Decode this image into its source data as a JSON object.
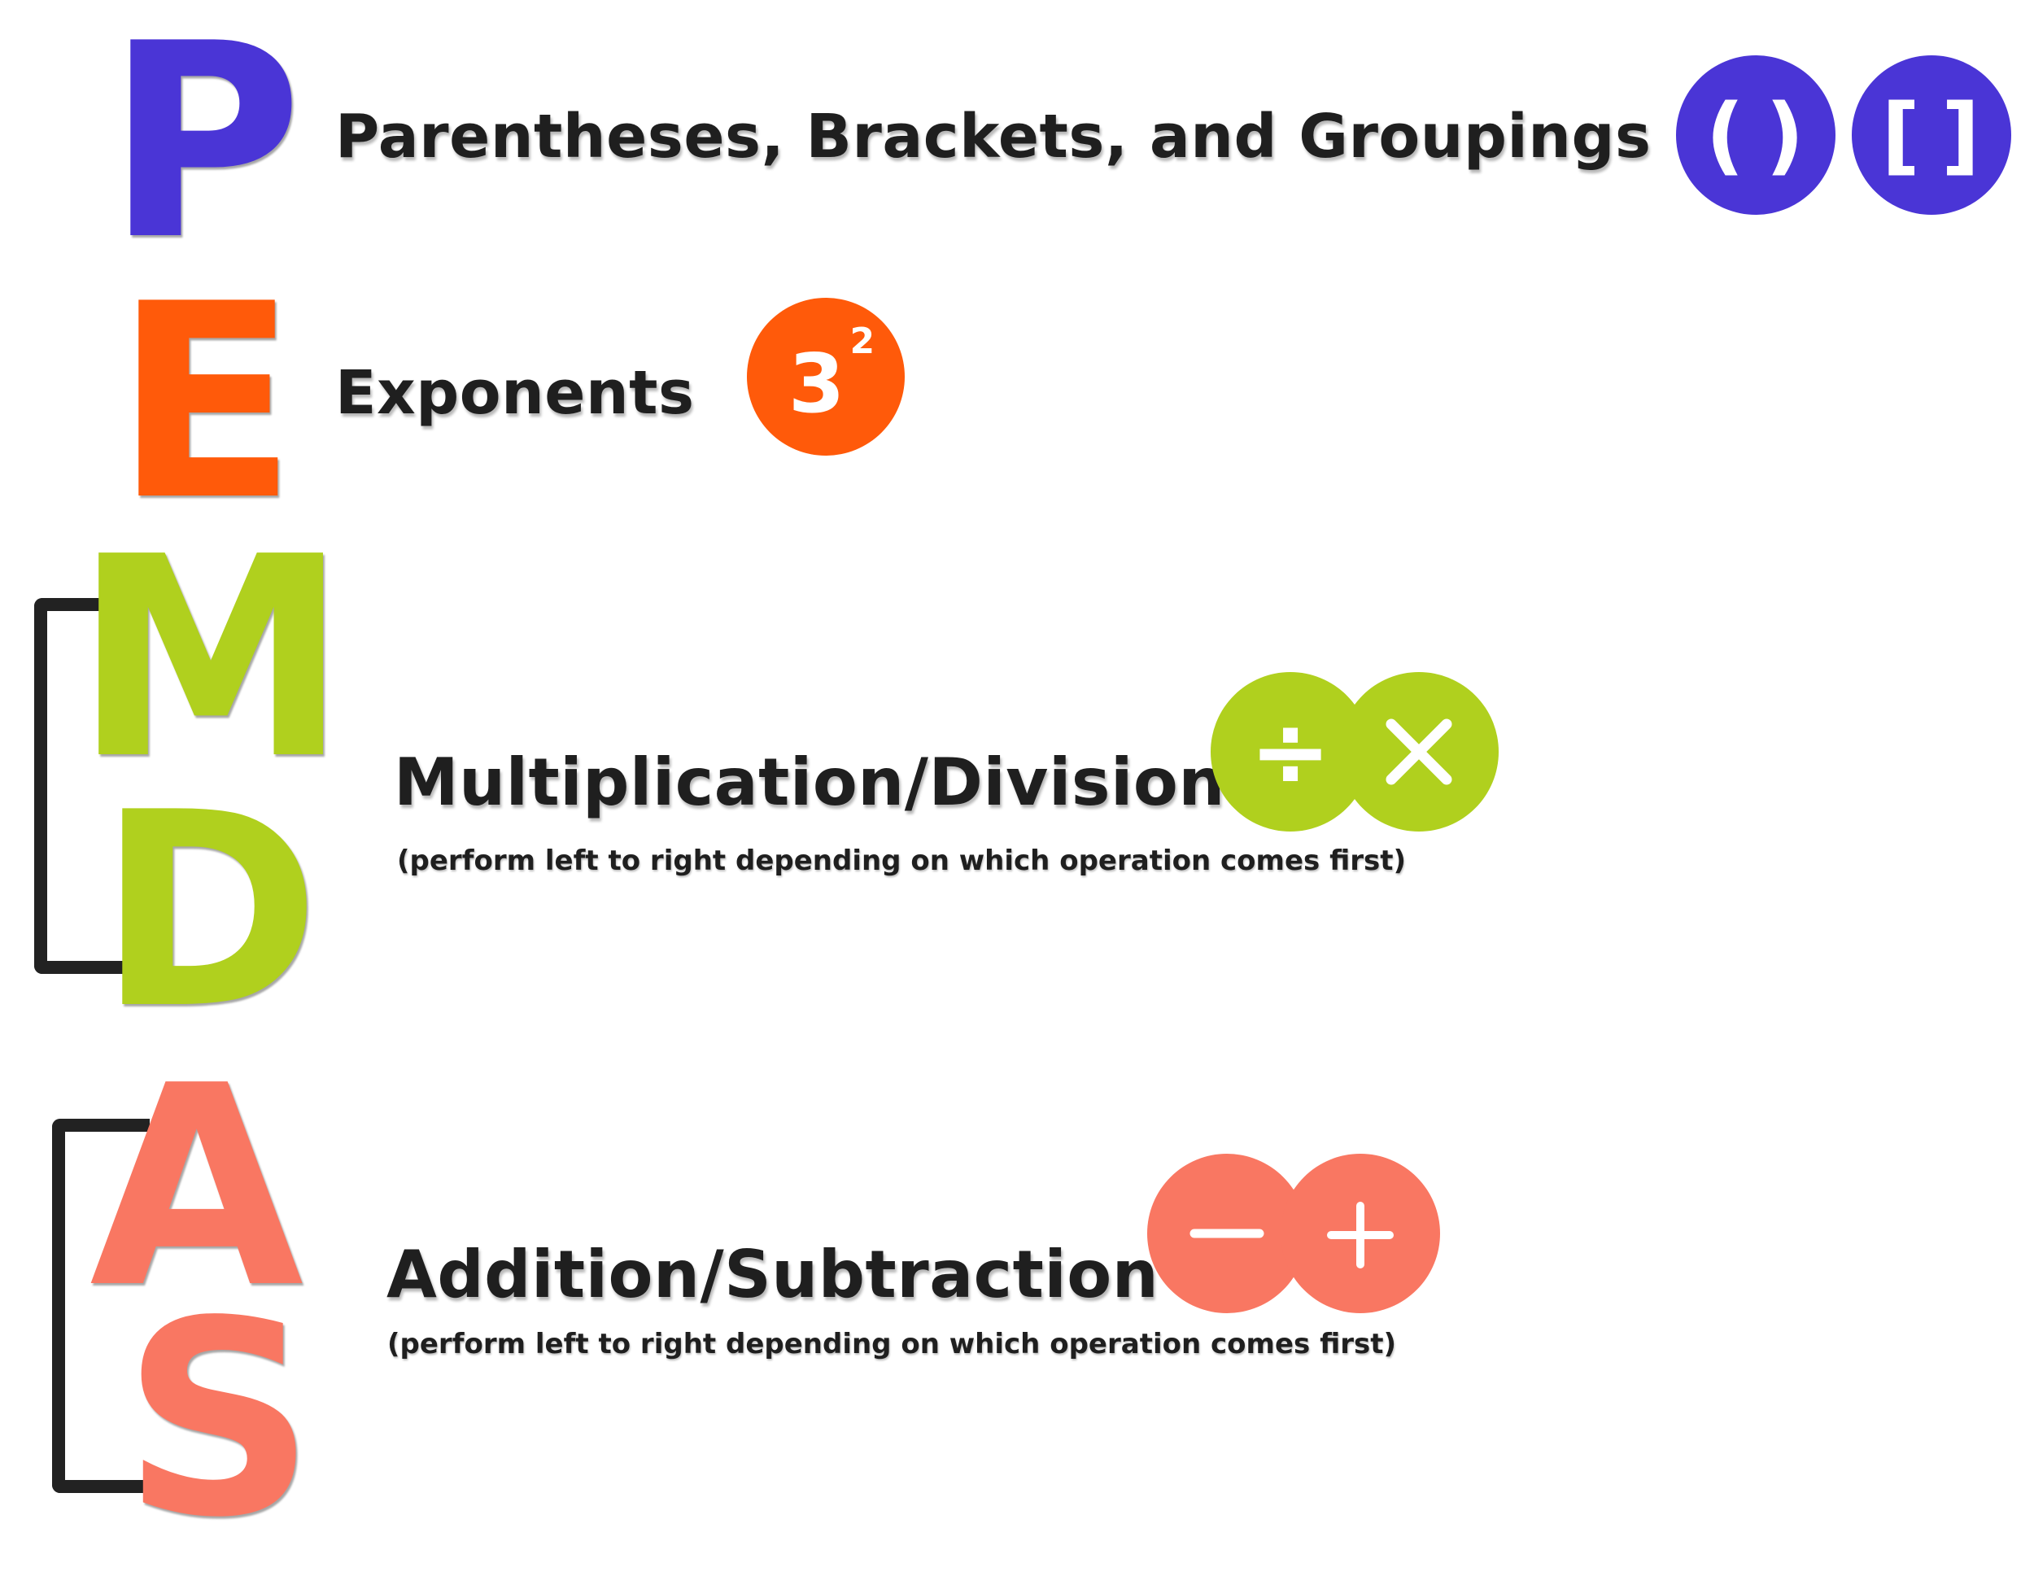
{
  "letters": {
    "p": "P",
    "e": "E",
    "m": "M",
    "d": "D",
    "a": "A",
    "s": "S"
  },
  "rows": {
    "parentheses": {
      "heading": "Parentheses, Brackets, and Groupings"
    },
    "exponents": {
      "heading": "Exponents"
    },
    "multiplication_division": {
      "heading": "Multiplication/Division",
      "note": "(perform left to right depending on which operation comes first)"
    },
    "addition_subtraction": {
      "heading": "Addition/Subtraction",
      "note": "(perform left to right depending on which operation comes first)"
    }
  },
  "icons": {
    "parentheses": "()",
    "brackets": "[]",
    "exponent_base": "3",
    "exponent_power": "2",
    "divide": "÷",
    "multiply": "×",
    "minus": "−",
    "plus": "+"
  },
  "colors": {
    "p": "#4a35d6",
    "e": "#ff5a0a",
    "md": "#b0d01e",
    "as": "#f97762",
    "bracket": "#222222",
    "text": "#1f1f1f"
  }
}
